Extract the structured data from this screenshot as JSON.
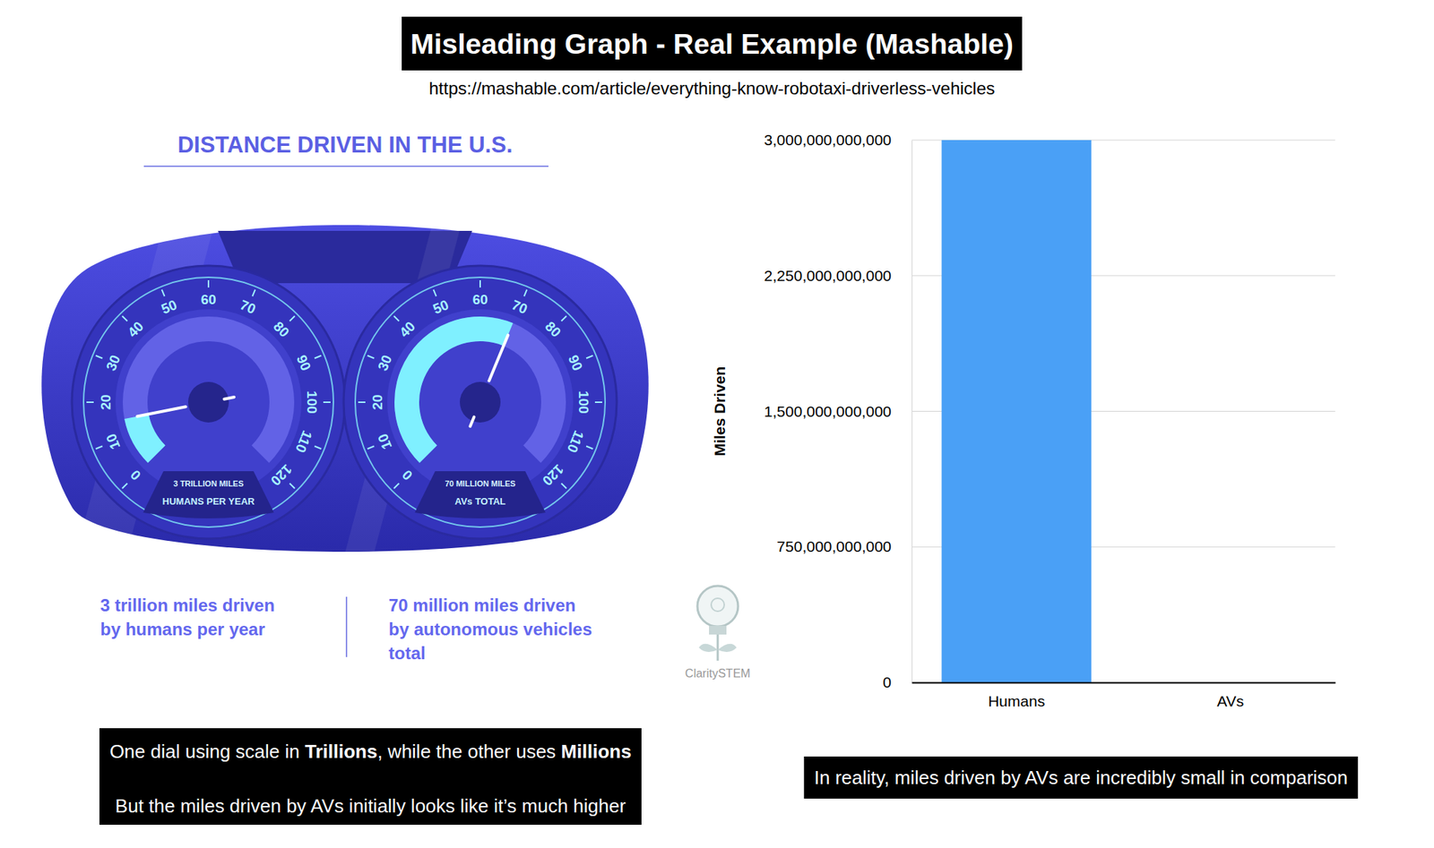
{
  "title": "Misleading Graph - Real Example (Mashable)",
  "url": "https://mashable.com/article/everything-know-robotaxi-driverless-vehicles",
  "infographic": {
    "title": "DISTANCE DRIVEN IN THE U.S.",
    "gauge_range": [
      0,
      120
    ],
    "gauge_ticks": [
      0,
      10,
      20,
      30,
      40,
      50,
      60,
      70,
      80,
      90,
      100,
      110,
      120
    ],
    "dials": [
      {
        "value_label": "3 TRILLION MILES",
        "caption": "HUMANS PER YEAR",
        "reading": 15
      },
      {
        "value_label": "70 MILLION MILES",
        "caption": "AVs TOTAL",
        "reading": 70
      }
    ],
    "captions": [
      [
        "3 trillion miles driven",
        "by humans per year"
      ],
      [
        "70 million miles driven",
        "by autonomous vehicles",
        "total"
      ]
    ]
  },
  "chart_data": {
    "type": "bar",
    "categories": [
      "Humans",
      "AVs"
    ],
    "values": [
      3000000000000,
      70000000
    ],
    "color": "#4aa0f6",
    "y_label": "Miles Driven",
    "ylim": [
      0,
      3000000000000
    ],
    "yticks": [
      0,
      {
        "value": 750000000000,
        "label": "750,000,000,000"
      },
      {
        "value": 1500000000000,
        "label": "1,500,000,000,000"
      },
      {
        "value": 2250000000000,
        "label": "2,250,000,000,000"
      },
      {
        "value": 3000000000000,
        "label": "3,000,000,000,000"
      }
    ],
    "grid": true
  },
  "notes": [
    {
      "lines": [
        "One dial using scale in Trillions, while the other uses Millions",
        "But the miles driven by AVs initially looks like it’s much higher"
      ],
      "emphasis": [
        "Trillions",
        "Millions"
      ]
    },
    {
      "lines": [
        "In reality, miles driven by AVs are incredibly small in comparison"
      ],
      "emphasis": []
    }
  ],
  "watermark": "ClaritySTEM"
}
